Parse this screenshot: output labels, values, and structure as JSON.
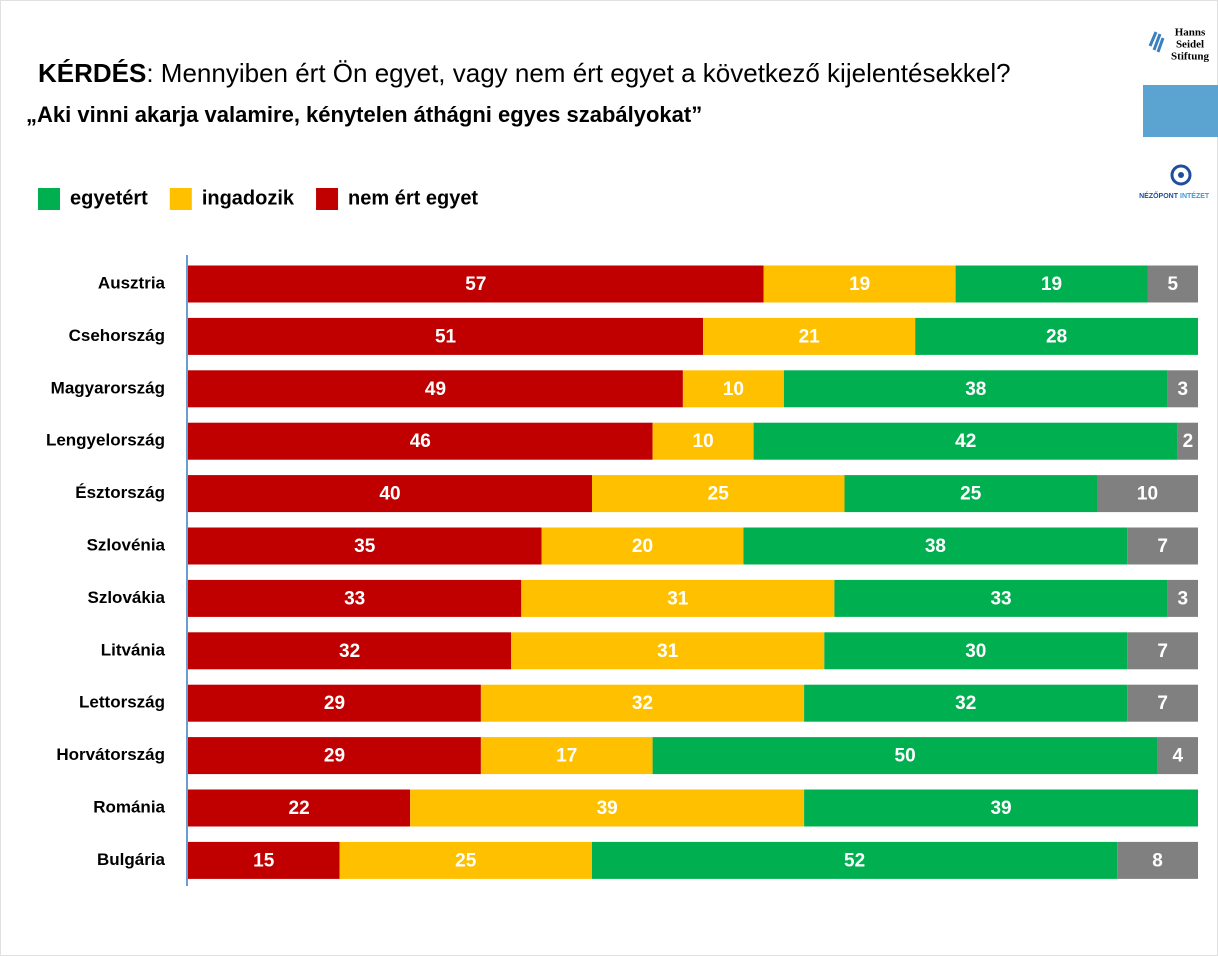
{
  "chart_data": {
    "type": "stacked-bar-horizontal",
    "title_label": "KÉRDÉS",
    "title": ": Mennyiben ért Ön egyet, vagy nem ért egyet a következő kijelentésekkel?",
    "subtitle": "„Aki vinni akarja valamire, kénytelen áthágni egyes szabályokat”",
    "logos": [
      "Hanns",
      "Seidel",
      "Stiftung",
      "NÉZŐPONT",
      "INTÉZET"
    ],
    "categories": [
      "Ausztria",
      "Csehország",
      "Magyarország",
      "Lengyelország",
      "Észtország",
      "Szlovénia",
      "Szlovákia",
      "Litvánia",
      "Lettország",
      "Horvátország",
      "Románia",
      "Bulgária"
    ],
    "series": [
      {
        "name": "nem ért egyet",
        "color": "#c00000",
        "values": [
          57,
          51,
          49,
          46,
          40,
          35,
          33,
          32,
          29,
          29,
          22,
          15
        ]
      },
      {
        "name": "ingadozik",
        "color": "#ffc000",
        "values": [
          19,
          21,
          10,
          10,
          25,
          20,
          31,
          31,
          32,
          17,
          39,
          25
        ]
      },
      {
        "name": "egyetért",
        "color": "#00b050",
        "values": [
          19,
          28,
          38,
          42,
          25,
          38,
          33,
          30,
          32,
          50,
          39,
          52
        ]
      },
      {
        "color": "#808080",
        "values": [
          5,
          null,
          3,
          2,
          10,
          7,
          3,
          7,
          7,
          4,
          null,
          8
        ]
      }
    ],
    "xlim": [
      0,
      100
    ],
    "legend": "top-left"
  }
}
